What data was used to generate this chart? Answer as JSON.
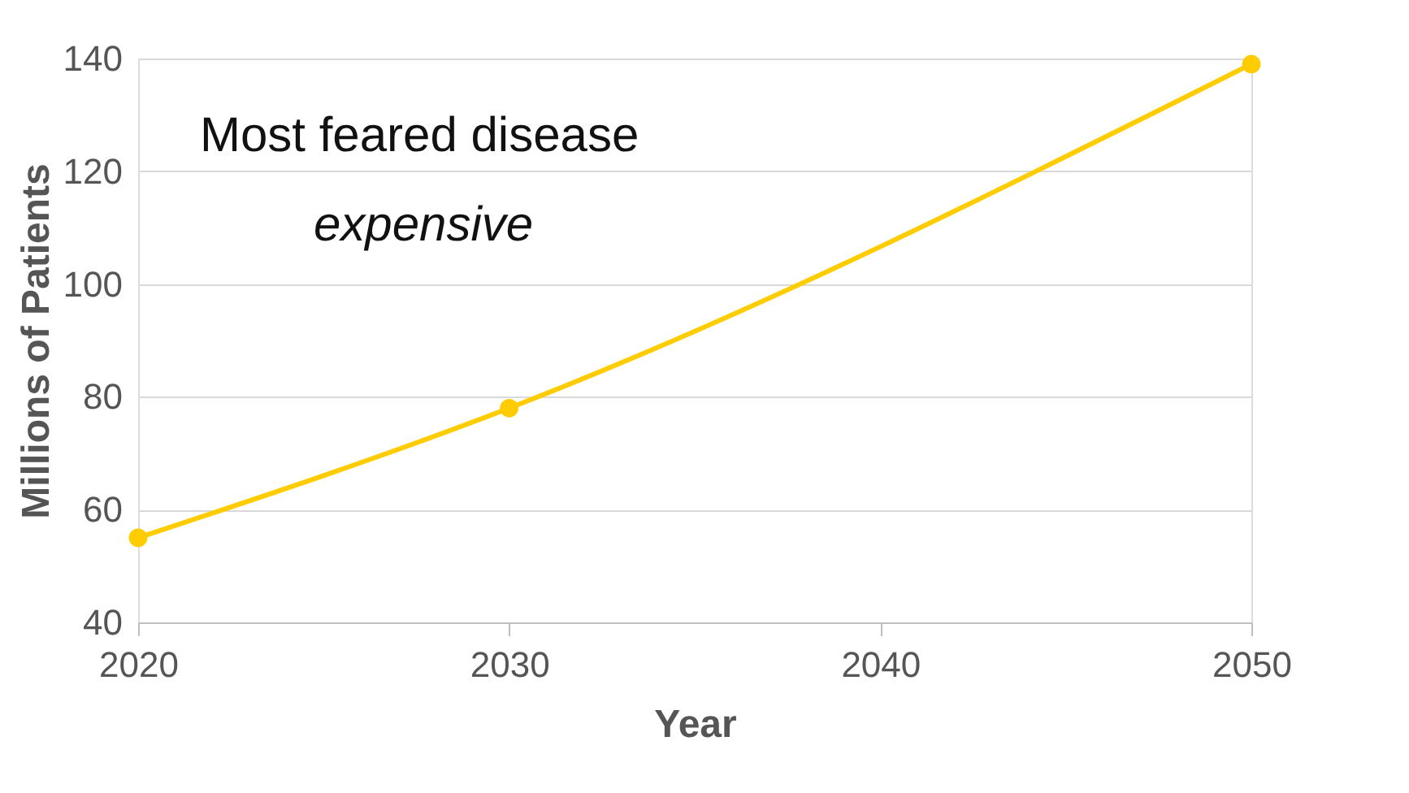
{
  "chart_data": {
    "type": "line",
    "xlabel": "Year",
    "ylabel": "Millions of Patients",
    "annotations": [
      "Most feared disease",
      "expensive"
    ],
    "series": [
      {
        "color": "#ffcc00",
        "x": [
          2020,
          2030,
          2050
        ],
        "values": [
          55,
          78,
          139
        ]
      }
    ],
    "xlim": [
      2020,
      2050
    ],
    "xticks": [
      2020,
      2030,
      2040,
      2050
    ],
    "ylim": [
      40,
      140
    ],
    "yticks": [
      40,
      60,
      80,
      100,
      120,
      140
    ],
    "grid": "y",
    "marker": "circle",
    "line_style": "solid"
  }
}
